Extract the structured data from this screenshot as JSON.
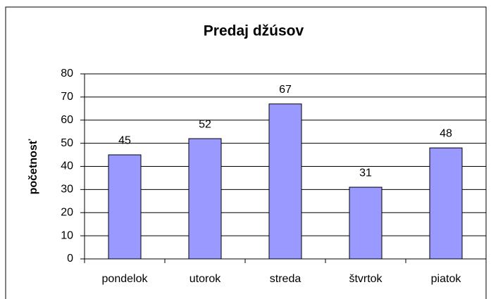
{
  "chart_data": {
    "type": "bar",
    "title": "Predaj džúsov",
    "y_label": "početnosť",
    "categories": [
      "pondelok",
      "utorok",
      "streda",
      "štvrtok",
      "piatok"
    ],
    "values": [
      45,
      52,
      67,
      31,
      48
    ],
    "color": "#9999ff",
    "ylim": [
      0,
      80
    ],
    "yticks": [
      0,
      10,
      20,
      30,
      40,
      50,
      60,
      70,
      80
    ],
    "grid": true
  }
}
